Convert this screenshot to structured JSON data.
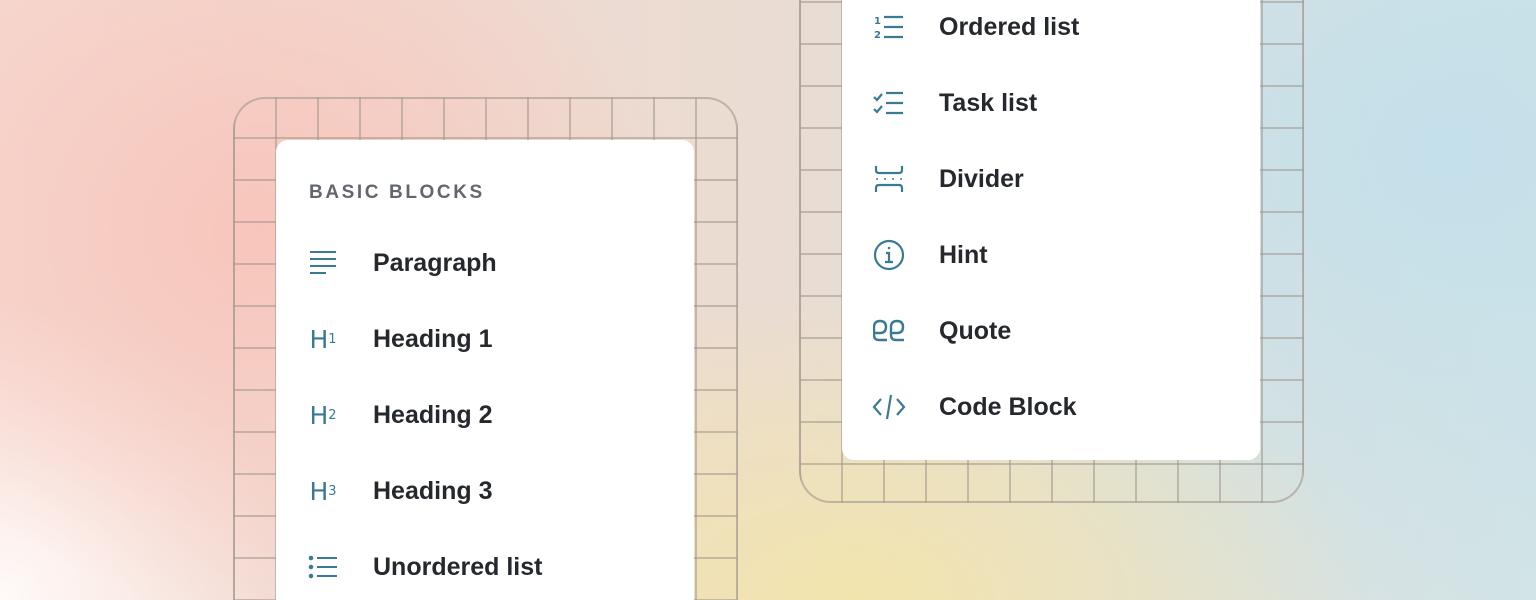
{
  "colors": {
    "icon": "#3a7a92",
    "text": "#25282d",
    "section": "#62666e"
  },
  "left_menu": {
    "section_title": "BASIC BLOCKS",
    "items": [
      {
        "label": "Paragraph",
        "icon": "paragraph-icon"
      },
      {
        "label": "Heading 1",
        "icon": "heading-1-icon",
        "icon_sub": "1"
      },
      {
        "label": "Heading 2",
        "icon": "heading-2-icon",
        "icon_sub": "2"
      },
      {
        "label": "Heading 3",
        "icon": "heading-3-icon",
        "icon_sub": "3"
      },
      {
        "label": "Unordered list",
        "icon": "unordered-list-icon"
      }
    ]
  },
  "right_menu": {
    "items": [
      {
        "label": "Ordered list",
        "icon": "ordered-list-icon"
      },
      {
        "label": "Task list",
        "icon": "task-list-icon"
      },
      {
        "label": "Divider",
        "icon": "divider-icon"
      },
      {
        "label": "Hint",
        "icon": "info-circle-icon"
      },
      {
        "label": "Quote",
        "icon": "quote-icon"
      },
      {
        "label": "Code Block",
        "icon": "code-icon"
      }
    ]
  }
}
